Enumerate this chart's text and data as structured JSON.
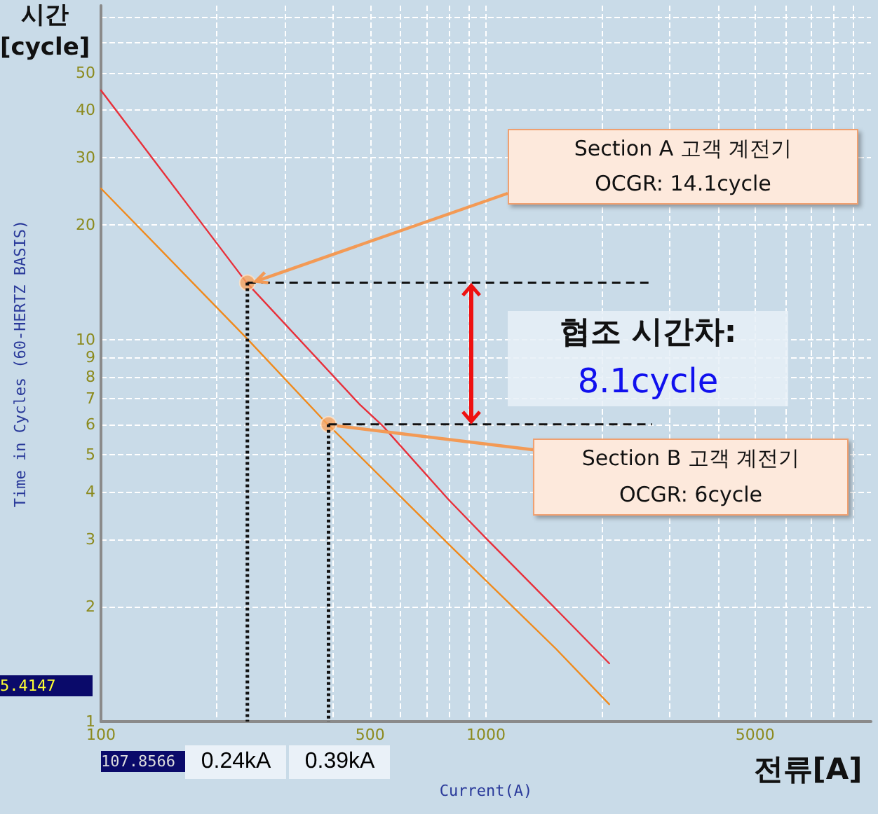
{
  "chart_data": {
    "type": "line",
    "xlabel": "Current(A)",
    "ylabel": "Time in Cycles (60-HERTZ BASIS)",
    "log": "xy",
    "grid": true,
    "marker": "none",
    "line_style": "solid",
    "xlim": [
      100,
      10000
    ],
    "ylim": [
      1,
      75
    ],
    "xticks": [
      100,
      {
        "value": 200,
        "label": null
      },
      {
        "value": 300,
        "label": null
      },
      {
        "value": 400,
        "label": null
      },
      500,
      {
        "value": 600,
        "label": null
      },
      {
        "value": 700,
        "label": null
      },
      {
        "value": 800,
        "label": null
      },
      {
        "value": 900,
        "label": null
      },
      1000,
      {
        "value": 2000,
        "label": null
      },
      {
        "value": 3000,
        "label": null
      },
      {
        "value": 4000,
        "label": null
      },
      5000,
      {
        "value": 6000,
        "label": null
      },
      {
        "value": 7000,
        "label": null
      },
      {
        "value": 8000,
        "label": null
      },
      {
        "value": 9000,
        "label": null
      }
    ],
    "yticks": [
      1,
      2,
      3,
      4,
      5,
      6,
      7,
      8,
      9,
      10,
      20,
      30,
      40,
      50,
      {
        "value": 60,
        "label": null
      },
      {
        "value": 70,
        "label": null
      }
    ],
    "series": [
      {
        "color": "#e8303a",
        "x": [
          100,
          239,
          471,
          539,
          798,
          1000,
          1520,
          2090
        ],
        "values": [
          45,
          14.1,
          6.75,
          5.95,
          3.82,
          3.02,
          1.97,
          1.42
        ]
      },
      {
        "color": "#f08a1c",
        "x": [
          100,
          241,
          382,
          798,
          1520,
          2090
        ],
        "values": [
          24.9,
          10,
          6.1,
          2.92,
          1.55,
          1.11
        ]
      },
      {
        "type": "scatter",
        "marker": "circle",
        "color": "#f7a35c",
        "x": [
          240,
          390
        ],
        "values": [
          14.1,
          6
        ]
      }
    ],
    "ref_lines": [
      {
        "axis": "x",
        "value": 240,
        "label": "0.24kA",
        "line_style": "dotted",
        "color": "#111111"
      },
      {
        "axis": "x",
        "value": 390,
        "label": "0.39kA",
        "line_style": "dotted",
        "color": "#111111"
      },
      {
        "axis": "y",
        "value": 14.1,
        "line_style": "dashed",
        "color": "#111111"
      },
      {
        "axis": "y",
        "value": 6,
        "line_style": "dashed",
        "color": "#111111"
      }
    ],
    "annotations": [
      "Section A 고객 계전기\nOCGR: 14.1cycle",
      "Section B 고객 계전기\nOCGR: 6cycle",
      "협조 시간차:",
      "8.1cycle",
      "시간\n[cycle]",
      "전류[A]",
      "5.4147",
      "107.8566"
    ]
  }
}
